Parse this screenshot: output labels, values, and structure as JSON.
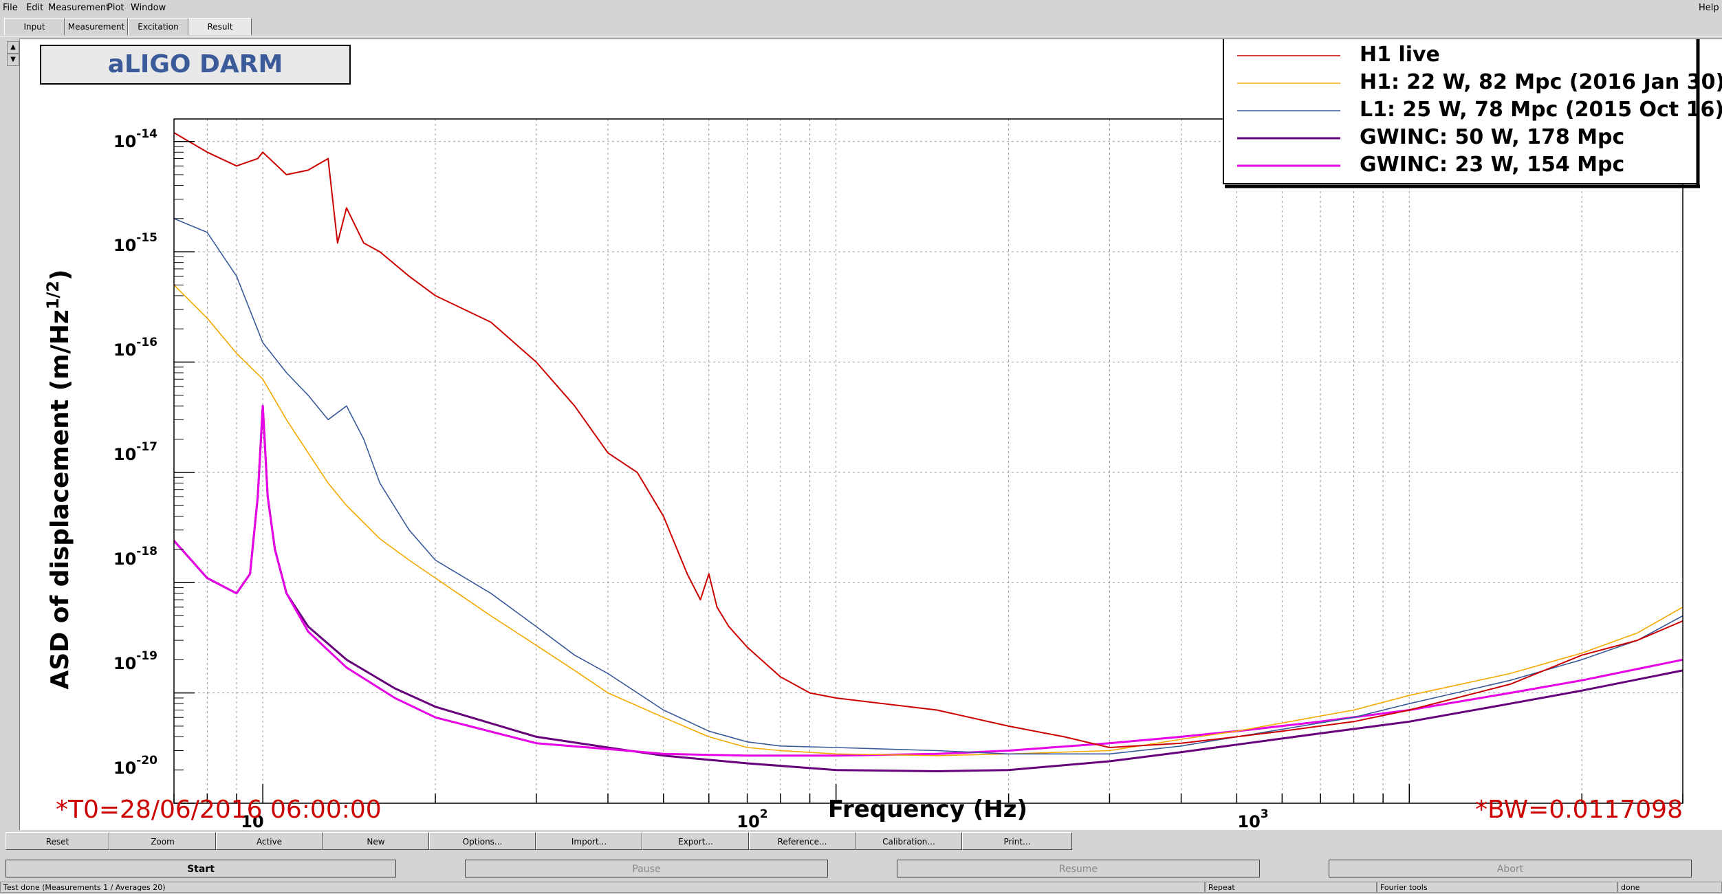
{
  "menu": {
    "file": "File",
    "edit": "Edit",
    "measurement": "Measurement",
    "plot": "Plot",
    "window": "Window",
    "help": "Help"
  },
  "tabs": [
    "Input",
    "Measurement",
    "Excitation",
    "Result"
  ],
  "plot": {
    "title": "aLIGO DARM",
    "xlabel": "Frequency (Hz)",
    "ylabel_main": "ASD of displacement (m/Hz",
    "ylabel_sup": "1/2",
    "ylabel_close": ")",
    "t0": "*T0=28/06/2016 06:00:00",
    "bw": "*BW=0.0117098",
    "xticks": [
      {
        "base": "10",
        "exp": ""
      },
      {
        "base": "10",
        "exp": "2"
      },
      {
        "base": "10",
        "exp": "3"
      }
    ],
    "yticks": [
      {
        "base": "10",
        "exp": "-14"
      },
      {
        "base": "10",
        "exp": "-15"
      },
      {
        "base": "10",
        "exp": "-16"
      },
      {
        "base": "10",
        "exp": "-17"
      },
      {
        "base": "10",
        "exp": "-18"
      },
      {
        "base": "10",
        "exp": "-19"
      },
      {
        "base": "10",
        "exp": "-20"
      }
    ]
  },
  "chart_data": {
    "type": "line",
    "xscale": "log",
    "yscale": "log",
    "xlim": [
      7,
      3000
    ],
    "ylim": [
      1e-20,
      1.6e-14
    ],
    "grid": true,
    "legend_position": "top-right",
    "series": [
      {
        "name": "H1 live",
        "color": "#cc0000",
        "x": [
          7,
          8,
          9,
          9.8,
          10,
          11,
          12,
          13,
          13.5,
          14,
          15,
          16,
          18,
          20,
          25,
          30,
          35,
          40,
          45,
          50,
          55,
          58,
          60,
          62,
          65,
          70,
          80,
          90,
          100,
          150,
          200,
          250,
          300,
          400,
          500,
          600,
          800,
          1000,
          1500,
          2000,
          2500,
          3000
        ],
        "y": [
          1.2e-14,
          8e-15,
          6e-15,
          7e-15,
          8e-15,
          5e-15,
          5.5e-15,
          7e-15,
          1.2e-15,
          2.5e-15,
          1.2e-15,
          1e-15,
          6e-16,
          4e-16,
          2.3e-16,
          1e-16,
          4e-17,
          1.5e-17,
          1e-17,
          4e-18,
          1.2e-18,
          7e-19,
          1.2e-18,
          6e-19,
          4e-19,
          2.6e-19,
          1.4e-19,
          1e-19,
          9e-20,
          7e-20,
          5e-20,
          4e-20,
          3.2e-20,
          3.5e-20,
          4e-20,
          4.5e-20,
          5.5e-20,
          7e-20,
          1.2e-19,
          2.2e-19,
          3e-19,
          4.5e-19
        ]
      },
      {
        "name": "H1: 22 W, 82 Mpc (2016 Jan 30)",
        "color": "#f5a800",
        "x": [
          7,
          8,
          9,
          10,
          11,
          12,
          13,
          14,
          15,
          16,
          18,
          20,
          25,
          30,
          35,
          40,
          50,
          60,
          70,
          80,
          100,
          150,
          200,
          300,
          400,
          500,
          800,
          1000,
          1500,
          2000,
          2500,
          3000
        ],
        "y": [
          5e-16,
          2.5e-16,
          1.2e-16,
          7e-17,
          3e-17,
          1.5e-17,
          8e-18,
          5e-18,
          3.5e-18,
          2.5e-18,
          1.6e-18,
          1.1e-18,
          5e-19,
          2.7e-19,
          1.6e-19,
          1e-19,
          6e-20,
          4e-20,
          3.2e-20,
          3e-20,
          2.8e-20,
          2.7e-20,
          2.8e-20,
          3e-20,
          3.8e-20,
          4.5e-20,
          7e-20,
          9.5e-20,
          1.5e-19,
          2.3e-19,
          3.5e-19,
          6e-19
        ]
      },
      {
        "name": "L1: 25 W, 78 Mpc (2015 Oct 16)",
        "color": "#3a5a9a",
        "x": [
          7,
          8,
          9,
          10,
          11,
          12,
          13,
          14,
          15,
          16,
          18,
          20,
          25,
          30,
          35,
          40,
          50,
          60,
          70,
          80,
          100,
          150,
          200,
          300,
          400,
          500,
          800,
          1000,
          1500,
          2000,
          2500,
          3000
        ],
        "y": [
          2e-15,
          1.5e-15,
          6e-16,
          1.5e-16,
          8e-17,
          5e-17,
          3e-17,
          4e-17,
          2e-17,
          8e-18,
          3e-18,
          1.6e-18,
          8e-19,
          4e-19,
          2.2e-19,
          1.5e-19,
          7e-20,
          4.5e-20,
          3.6e-20,
          3.3e-20,
          3.2e-20,
          3e-20,
          2.8e-20,
          2.8e-20,
          3.3e-20,
          4e-20,
          6e-20,
          8e-20,
          1.3e-19,
          2e-19,
          3e-19,
          5e-19
        ]
      },
      {
        "name": "GWINC: 50 W, 178 Mpc",
        "color": "#66007a",
        "x": [
          7,
          8,
          9,
          9.5,
          9.8,
          10,
          10.2,
          10.5,
          11,
          12,
          14,
          17,
          20,
          30,
          40,
          50,
          70,
          100,
          150,
          200,
          300,
          400,
          500,
          700,
          1000,
          1500,
          2000,
          3000
        ],
        "y": [
          2.4e-18,
          1.1e-18,
          8e-19,
          1.2e-18,
          6e-18,
          4e-17,
          6e-18,
          2e-18,
          8e-19,
          4e-19,
          2e-19,
          1.1e-19,
          7.5e-20,
          4e-20,
          3.2e-20,
          2.7e-20,
          2.3e-20,
          2e-20,
          1.95e-20,
          2e-20,
          2.4e-20,
          2.9e-20,
          3.4e-20,
          4.3e-20,
          5.5e-20,
          8e-20,
          1.05e-19,
          1.6e-19
        ]
      },
      {
        "name": "GWINC: 23 W, 154 Mpc",
        "color": "#e600e6",
        "x": [
          7,
          8,
          9,
          9.5,
          9.8,
          10,
          10.2,
          10.5,
          11,
          12,
          14,
          17,
          20,
          30,
          40,
          50,
          70,
          100,
          150,
          200,
          300,
          400,
          500,
          700,
          1000,
          1500,
          2000,
          3000
        ],
        "y": [
          2.4e-18,
          1.1e-18,
          8e-19,
          1.2e-18,
          6e-18,
          4e-17,
          6e-18,
          2e-18,
          8e-19,
          3.6e-19,
          1.7e-19,
          9e-20,
          6e-20,
          3.5e-20,
          3.1e-20,
          2.8e-20,
          2.7e-20,
          2.7e-20,
          2.8e-20,
          3e-20,
          3.5e-20,
          4e-20,
          4.5e-20,
          5.5e-20,
          7e-20,
          1e-19,
          1.3e-19,
          2e-19
        ]
      }
    ]
  },
  "buttons": [
    "Reset",
    "Zoom",
    "Active",
    "New",
    "Options...",
    "Import...",
    "Export...",
    "Reference...",
    "Calibration...",
    "Print..."
  ],
  "controls": [
    "Start",
    "Pause",
    "Resume",
    "Abort"
  ],
  "status": {
    "message": "Test done (Measurements 1 / Averages 20)",
    "mode": "Repeat",
    "tools": "Fourier tools",
    "state": "done"
  }
}
